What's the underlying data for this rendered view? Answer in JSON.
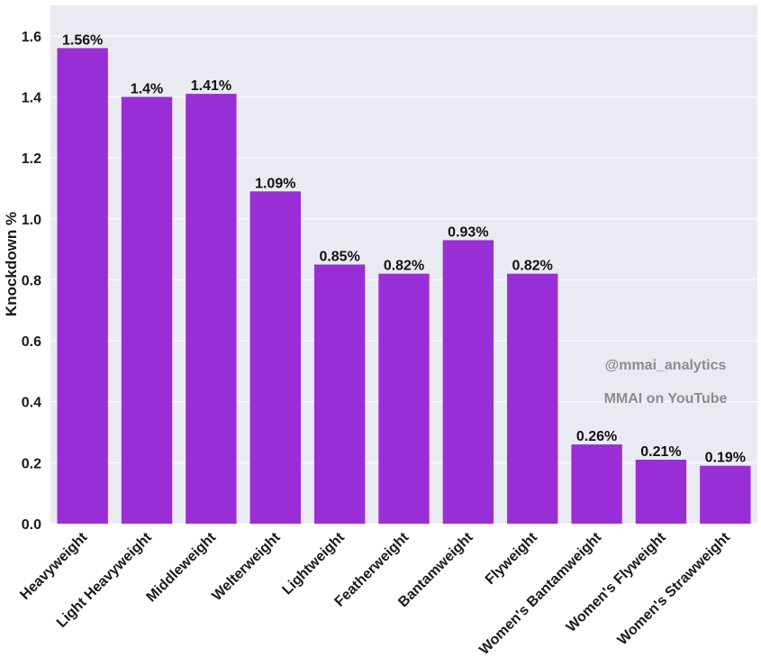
{
  "chart_data": {
    "type": "bar",
    "categories": [
      "Heavyweight",
      "Light Heavyweight",
      "Middleweight",
      "Welterweight",
      "Lightweight",
      "Featherweight",
      "Bantamweight",
      "Flyweight",
      "Women's Bantamweight",
      "Women's Flyweight",
      "Women's Strawweight"
    ],
    "values": [
      1.56,
      1.4,
      1.41,
      1.09,
      0.85,
      0.82,
      0.93,
      0.82,
      0.26,
      0.21,
      0.19
    ],
    "data_labels": [
      "1.56%",
      "1.4%",
      "1.41%",
      "1.09%",
      "0.85%",
      "0.82%",
      "0.93%",
      "0.82%",
      "0.26%",
      "0.21%",
      "0.19%"
    ],
    "title": "",
    "xlabel": "",
    "ylabel": "Knockdown %",
    "ylim": [
      0,
      1.7
    ],
    "yticks": [
      "0.0",
      "0.2",
      "0.4",
      "0.6",
      "0.8",
      "1.0",
      "1.2",
      "1.4",
      "1.6"
    ],
    "grid": true,
    "bar_color": "#9a2ed6",
    "background_color": "#eaeaf2",
    "grid_color": "#ffffff"
  },
  "watermarks": {
    "handle": "@mmai_analytics",
    "channel": "MMAI on YouTube"
  }
}
